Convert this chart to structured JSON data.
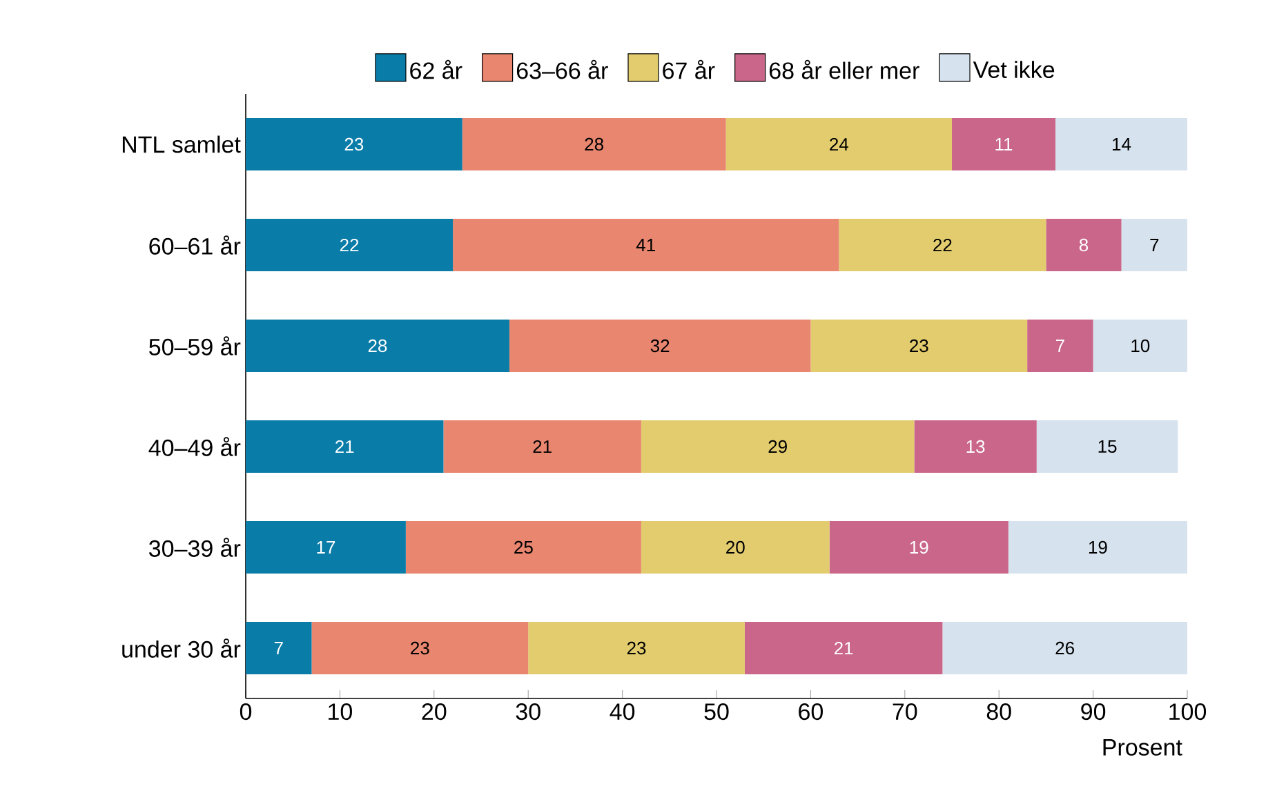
{
  "chart_data": {
    "type": "bar",
    "orientation": "horizontal",
    "stacked": true,
    "data_labels": true,
    "legend": "top",
    "grid": false,
    "categories": [
      "NTL samlet",
      "60–61 år",
      "50–59 år",
      "40–49 år",
      "30–39 år",
      "under 30 år"
    ],
    "xlabel": "Prosent",
    "xlim": [
      0,
      100
    ],
    "xticks": [
      0,
      10,
      20,
      30,
      40,
      50,
      60,
      70,
      80,
      90,
      100
    ],
    "series": [
      {
        "name": "62 år",
        "color": "#0a7ca8",
        "values": [
          23,
          22,
          28,
          21,
          17,
          7
        ]
      },
      {
        "name": "63–66 år",
        "color": "#e8866f",
        "values": [
          28,
          41,
          32,
          21,
          25,
          23
        ]
      },
      {
        "name": "67 år",
        "color": "#e2cc6e",
        "values": [
          24,
          22,
          23,
          29,
          20,
          23
        ]
      },
      {
        "name": "68 år eller mer",
        "color": "#c9668a",
        "values": [
          11,
          8,
          7,
          13,
          19,
          21
        ]
      },
      {
        "name": "Vet ikke",
        "color": "#d6e2ee",
        "values": [
          14,
          7,
          10,
          15,
          19,
          26
        ]
      }
    ]
  }
}
